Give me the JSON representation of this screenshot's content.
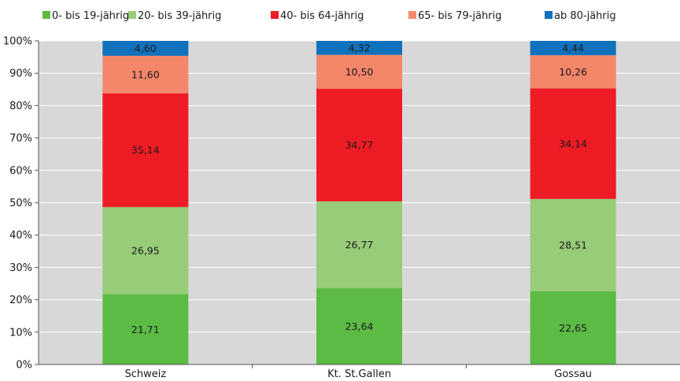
{
  "chart_data": {
    "type": "bar",
    "stacked": true,
    "categories": [
      "Schweiz",
      "Kt. St.Gallen",
      "Gossau"
    ],
    "series": [
      {
        "name": "0- bis 19-jährig",
        "color": "#5cbb45",
        "values": [
          21.71,
          23.64,
          22.65
        ],
        "labels": [
          "21,71",
          "23,64",
          "22,65"
        ],
        "label_color": "#1a1a1a"
      },
      {
        "name": "20- bis 39-jährig",
        "color": "#97cc78",
        "values": [
          26.95,
          26.77,
          28.51
        ],
        "labels": [
          "26,95",
          "26,77",
          "28,51"
        ],
        "label_color": "#1a1a1a"
      },
      {
        "name": "40- bis 64-jährig",
        "color": "#ee1c25",
        "values": [
          35.14,
          34.77,
          34.14
        ],
        "labels": [
          "35,14",
          "34,77",
          "34,14"
        ],
        "label_color": "#1a1a1a"
      },
      {
        "name": "65- bis 79-jährig",
        "color": "#f4866a",
        "values": [
          11.6,
          10.5,
          10.26
        ],
        "labels": [
          "11,60",
          "10,50",
          "10,26"
        ],
        "label_color": "#1a1a1a"
      },
      {
        "name": "ab 80-jährig",
        "color": "#1071bd",
        "values": [
          4.6,
          4.32,
          4.44
        ],
        "labels": [
          "4,60",
          "4,32",
          "4,44"
        ],
        "label_color": "#ffffff"
      }
    ],
    "yticks": [
      "0%",
      "10%",
      "20%",
      "30%",
      "40%",
      "50%",
      "60%",
      "70%",
      "80%",
      "90%",
      "100%"
    ],
    "ylim": [
      0,
      100
    ],
    "grid": true,
    "legend_position": "top",
    "plot_background": "#d8d8d8",
    "title": "",
    "xlabel": "",
    "ylabel": ""
  }
}
